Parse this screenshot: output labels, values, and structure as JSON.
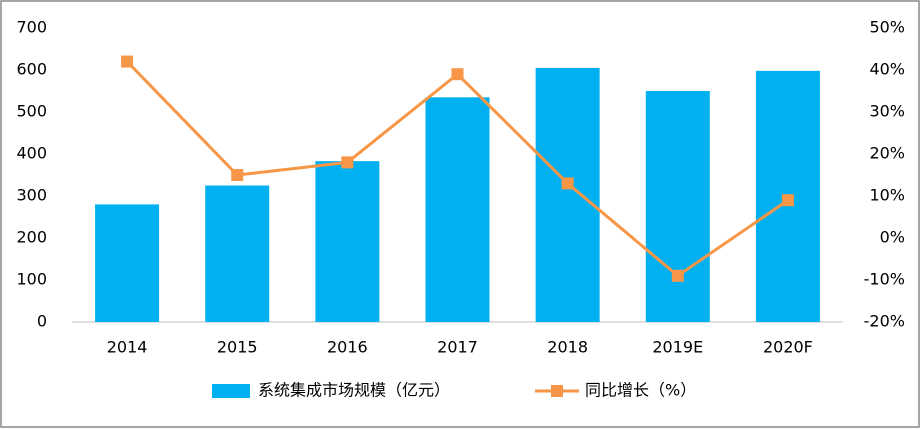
{
  "chart_data": {
    "type": "bar-line",
    "categories": [
      "2014",
      "2015",
      "2016",
      "2017",
      "2018",
      "2019E",
      "2020F"
    ],
    "series": [
      {
        "name": "系统集成市场规模（亿元）",
        "type": "bar",
        "color": "#00b0f0",
        "values": [
          280,
          325,
          383,
          535,
          605,
          550,
          598
        ]
      },
      {
        "name": "同比增长（%）",
        "type": "line",
        "axis": "y2",
        "color": "#f79646",
        "values": [
          42,
          15,
          18,
          39,
          13,
          -9,
          9
        ]
      }
    ],
    "ylim": [
      0,
      700
    ],
    "yticks": [
      0,
      100,
      200,
      300,
      400,
      500,
      600,
      700
    ],
    "y2lim": [
      -20,
      50
    ],
    "y2ticks": [
      {
        "value": -20,
        "label": "-20%"
      },
      {
        "value": -10,
        "label": "-10%"
      },
      {
        "value": 0,
        "label": "0%"
      },
      {
        "value": 10,
        "label": "10%"
      },
      {
        "value": 20,
        "label": "20%"
      },
      {
        "value": 30,
        "label": "30%"
      },
      {
        "value": 40,
        "label": "40%"
      },
      {
        "value": 50,
        "label": "50%"
      }
    ],
    "legend": "bottom"
  }
}
